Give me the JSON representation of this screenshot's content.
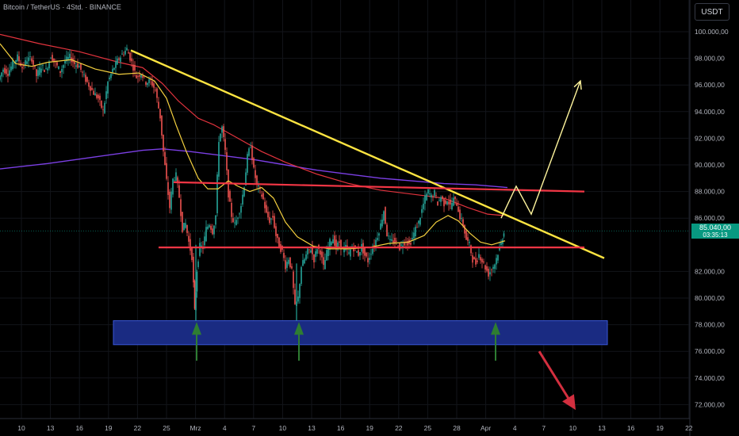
{
  "header": {
    "title": "Bitcoin / TetherUS · 4Std. · BINANCE",
    "currency": "USDT"
  },
  "last_price": {
    "value": "85.040,00",
    "countdown": "03:35:13"
  },
  "chart_data": {
    "type": "candlestick",
    "ylim": [
      71000,
      101200
    ],
    "y_ticks": [
      {
        "v": 100000,
        "l": "100.000,00"
      },
      {
        "v": 98000,
        "l": "98.000,00"
      },
      {
        "v": 96000,
        "l": "96.000,00"
      },
      {
        "v": 94000,
        "l": "94.000,00"
      },
      {
        "v": 92000,
        "l": "92.000,00"
      },
      {
        "v": 90000,
        "l": "90.000,00"
      },
      {
        "v": 88000,
        "l": "88.000,00"
      },
      {
        "v": 86000,
        "l": "86.000,00"
      },
      {
        "v": 82000,
        "l": "82.000,00"
      },
      {
        "v": 80000,
        "l": "80.000,00"
      },
      {
        "v": 78000,
        "l": "78.000,00"
      },
      {
        "v": 76000,
        "l": "76.000,00"
      },
      {
        "v": 74000,
        "l": "74.000,00"
      },
      {
        "v": 72000,
        "l": "72.000,00"
      }
    ],
    "x_ticks": [
      "10",
      "13",
      "16",
      "19",
      "22",
      "25",
      "Mrz",
      "4",
      "7",
      "10",
      "13",
      "16",
      "19",
      "22",
      "25",
      "28",
      "Apr",
      "4",
      "7",
      "10",
      "13",
      "16",
      "19",
      "22"
    ],
    "price_path": [
      [
        0,
        96400
      ],
      [
        6,
        97200
      ],
      [
        12,
        96900
      ],
      [
        18,
        97600
      ],
      [
        24,
        98100
      ],
      [
        30,
        97300
      ],
      [
        36,
        97900
      ],
      [
        42,
        98000
      ],
      [
        48,
        96700
      ],
      [
        54,
        97400
      ],
      [
        60,
        97100
      ],
      [
        66,
        98200
      ],
      [
        72,
        97600
      ],
      [
        78,
        97000
      ],
      [
        84,
        97800
      ],
      [
        90,
        98100
      ],
      [
        96,
        97600
      ],
      [
        102,
        97400
      ],
      [
        108,
        96600
      ],
      [
        114,
        96000
      ],
      [
        120,
        95400
      ],
      [
        126,
        95000
      ],
      [
        132,
        94000
      ],
      [
        138,
        96200
      ],
      [
        144,
        97100
      ],
      [
        150,
        97800
      ],
      [
        156,
        98300
      ],
      [
        162,
        98700
      ],
      [
        168,
        97700
      ],
      [
        174,
        96600
      ],
      [
        180,
        96900
      ],
      [
        186,
        96200
      ],
      [
        192,
        96300
      ],
      [
        198,
        95600
      ],
      [
        204,
        93600
      ],
      [
        208,
        91000
      ],
      [
        212,
        88800
      ],
      [
        216,
        86800
      ],
      [
        220,
        88900
      ],
      [
        224,
        89200
      ],
      [
        228,
        87600
      ],
      [
        232,
        85200
      ],
      [
        236,
        85600
      ],
      [
        240,
        84200
      ],
      [
        244,
        83100
      ],
      [
        247,
        79000
      ],
      [
        250,
        82100
      ],
      [
        254,
        83900
      ],
      [
        258,
        83800
      ],
      [
        262,
        85200
      ],
      [
        266,
        85600
      ],
      [
        270,
        85000
      ],
      [
        274,
        86200
      ],
      [
        278,
        91900
      ],
      [
        282,
        92800
      ],
      [
        286,
        91000
      ],
      [
        290,
        87800
      ],
      [
        294,
        86200
      ],
      [
        298,
        85500
      ],
      [
        302,
        86200
      ],
      [
        306,
        87000
      ],
      [
        310,
        88500
      ],
      [
        314,
        90600
      ],
      [
        318,
        91500
      ],
      [
        322,
        89600
      ],
      [
        326,
        88500
      ],
      [
        330,
        88000
      ],
      [
        334,
        87400
      ],
      [
        338,
        86300
      ],
      [
        342,
        85800
      ],
      [
        346,
        86100
      ],
      [
        350,
        84700
      ],
      [
        354,
        83900
      ],
      [
        358,
        83500
      ],
      [
        362,
        82400
      ],
      [
        366,
        83000
      ],
      [
        370,
        82000
      ],
      [
        374,
        79300
      ],
      [
        378,
        80000
      ],
      [
        382,
        82400
      ],
      [
        386,
        82900
      ],
      [
        390,
        83500
      ],
      [
        394,
        83700
      ],
      [
        398,
        82900
      ],
      [
        402,
        83800
      ],
      [
        406,
        83500
      ],
      [
        410,
        82300
      ],
      [
        414,
        83400
      ],
      [
        418,
        84200
      ],
      [
        422,
        84500
      ],
      [
        426,
        83800
      ],
      [
        430,
        84200
      ],
      [
        434,
        83600
      ],
      [
        438,
        83800
      ],
      [
        442,
        83300
      ],
      [
        446,
        83900
      ],
      [
        450,
        83600
      ],
      [
        454,
        83300
      ],
      [
        458,
        83900
      ],
      [
        462,
        83200
      ],
      [
        466,
        82800
      ],
      [
        470,
        83500
      ],
      [
        474,
        84000
      ],
      [
        478,
        84700
      ],
      [
        482,
        85500
      ],
      [
        486,
        86600
      ],
      [
        490,
        84800
      ],
      [
        494,
        84200
      ],
      [
        498,
        84300
      ],
      [
        502,
        84100
      ],
      [
        506,
        83800
      ],
      [
        510,
        84100
      ],
      [
        514,
        84300
      ],
      [
        518,
        84000
      ],
      [
        522,
        84500
      ],
      [
        526,
        85200
      ],
      [
        530,
        85700
      ],
      [
        534,
        86600
      ],
      [
        538,
        87500
      ],
      [
        542,
        88000
      ],
      [
        546,
        87600
      ],
      [
        550,
        87900
      ],
      [
        554,
        87100
      ],
      [
        558,
        87600
      ],
      [
        562,
        87100
      ],
      [
        566,
        87400
      ],
      [
        570,
        86900
      ],
      [
        574,
        87400
      ],
      [
        578,
        87100
      ],
      [
        582,
        86100
      ],
      [
        586,
        85500
      ],
      [
        590,
        84400
      ],
      [
        594,
        84000
      ],
      [
        598,
        82900
      ],
      [
        602,
        82600
      ],
      [
        606,
        83300
      ],
      [
        610,
        82800
      ],
      [
        614,
        82300
      ],
      [
        618,
        81800
      ],
      [
        622,
        82200
      ],
      [
        626,
        82600
      ],
      [
        630,
        83400
      ],
      [
        634,
        84100
      ],
      [
        637,
        85040
      ]
    ],
    "ma_red": [
      [
        0,
        99800
      ],
      [
        50,
        99100
      ],
      [
        100,
        98500
      ],
      [
        150,
        97700
      ],
      [
        180,
        97300
      ],
      [
        205,
        96100
      ],
      [
        225,
        94800
      ],
      [
        250,
        93500
      ],
      [
        270,
        93000
      ],
      [
        300,
        92000
      ],
      [
        330,
        91000
      ],
      [
        360,
        90200
      ],
      [
        400,
        89300
      ],
      [
        440,
        88600
      ],
      [
        480,
        88100
      ],
      [
        520,
        87800
      ],
      [
        560,
        87500
      ],
      [
        590,
        86800
      ],
      [
        615,
        86300
      ],
      [
        635,
        86200
      ]
    ],
    "ma_purple": [
      [
        0,
        89700
      ],
      [
        60,
        90100
      ],
      [
        120,
        90600
      ],
      [
        180,
        91100
      ],
      [
        205,
        91200
      ],
      [
        240,
        91000
      ],
      [
        280,
        90700
      ],
      [
        320,
        90400
      ],
      [
        360,
        90000
      ],
      [
        400,
        89600
      ],
      [
        440,
        89300
      ],
      [
        480,
        89000
      ],
      [
        520,
        88800
      ],
      [
        560,
        88600
      ],
      [
        600,
        88500
      ],
      [
        640,
        88300
      ]
    ],
    "ma_yellow": [
      [
        0,
        99100
      ],
      [
        20,
        97600
      ],
      [
        40,
        97400
      ],
      [
        60,
        97700
      ],
      [
        90,
        97900
      ],
      [
        120,
        97200
      ],
      [
        150,
        96800
      ],
      [
        175,
        96900
      ],
      [
        195,
        96300
      ],
      [
        210,
        95000
      ],
      [
        222,
        93000
      ],
      [
        235,
        91000
      ],
      [
        250,
        89000
      ],
      [
        262,
        88200
      ],
      [
        275,
        88200
      ],
      [
        288,
        88800
      ],
      [
        300,
        88400
      ],
      [
        315,
        88000
      ],
      [
        330,
        88300
      ],
      [
        345,
        87500
      ],
      [
        360,
        85700
      ],
      [
        375,
        84600
      ],
      [
        395,
        83900
      ],
      [
        415,
        83700
      ],
      [
        440,
        83700
      ],
      [
        465,
        83800
      ],
      [
        490,
        84100
      ],
      [
        515,
        84200
      ],
      [
        535,
        84700
      ],
      [
        550,
        85700
      ],
      [
        565,
        86200
      ],
      [
        578,
        85800
      ],
      [
        592,
        84900
      ],
      [
        606,
        84200
      ],
      [
        620,
        84000
      ],
      [
        637,
        84300
      ]
    ],
    "trendline": {
      "from": [
        165,
        98600
      ],
      "to": [
        762,
        83000
      ]
    },
    "resistance": {
      "from": [
        219,
        88700
      ],
      "to": [
        737,
        88000
      ]
    },
    "support": {
      "from": [
        200,
        83800
      ],
      "to": [
        737,
        83800
      ]
    },
    "demand_zone": {
      "x0": 143,
      "x1": 766,
      "y_top": 78300,
      "y_bottom": 76500
    },
    "bullish_path": [
      [
        632,
        86000
      ],
      [
        651,
        88400
      ],
      [
        670,
        86300
      ],
      [
        732,
        96300
      ]
    ],
    "bearish_arrow": [
      [
        680,
        76000
      ],
      [
        726,
        71600
      ]
    ],
    "up_arrows": [
      {
        "x": 248,
        "y_top": 78200,
        "y_bottom": 75300
      },
      {
        "x": 377,
        "y_top": 78200,
        "y_bottom": 75300
      },
      {
        "x": 625,
        "y_top": 78200,
        "y_bottom": 75300
      }
    ]
  }
}
